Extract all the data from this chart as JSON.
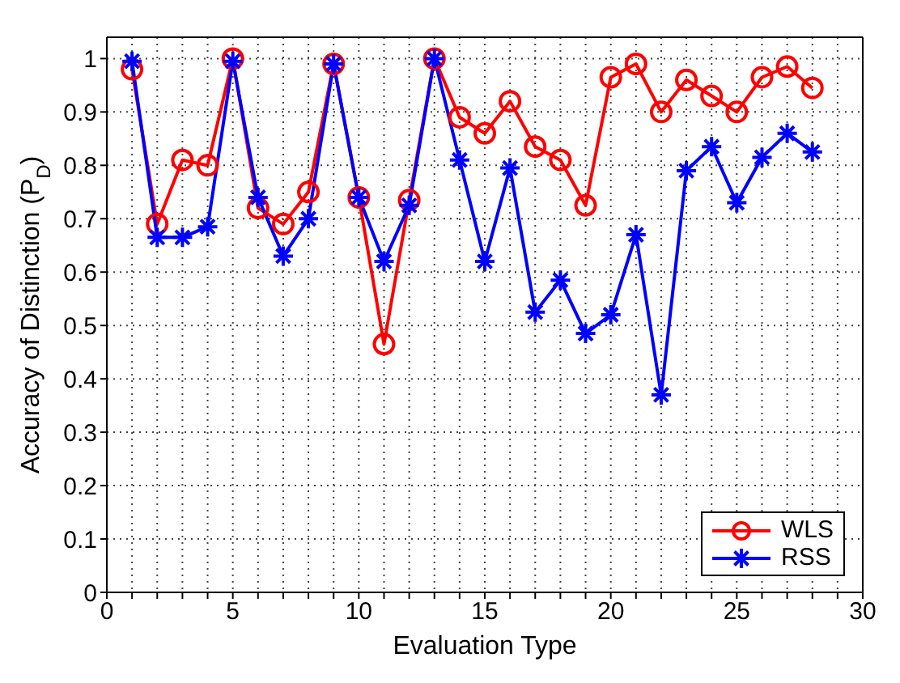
{
  "chart_data": {
    "type": "line",
    "xlabel": "Evaluation Type",
    "ylabel": "Accuracy of Distinction (P$_{D}$)",
    "x": [
      1,
      2,
      3,
      4,
      5,
      6,
      7,
      8,
      9,
      10,
      11,
      12,
      13,
      14,
      15,
      16,
      17,
      18,
      19,
      20,
      21,
      22,
      23,
      24,
      25,
      26,
      27,
      28
    ],
    "series": [
      {
        "name": "WLS",
        "color": "#ff0000",
        "marker": "circle",
        "values": [
          0.98,
          0.69,
          0.81,
          0.8,
          1.0,
          0.72,
          0.69,
          0.75,
          0.99,
          0.74,
          0.465,
          0.735,
          1.0,
          0.89,
          0.86,
          0.92,
          0.835,
          0.81,
          0.725,
          0.965,
          0.99,
          0.9,
          0.96,
          0.93,
          0.9,
          0.965,
          0.985,
          0.945
        ]
      },
      {
        "name": "RSS",
        "color": "#0000ff",
        "marker": "cross",
        "values": [
          0.995,
          0.665,
          0.665,
          0.685,
          0.995,
          0.74,
          0.63,
          0.7,
          0.99,
          0.74,
          0.62,
          0.725,
          1.0,
          0.81,
          0.62,
          0.795,
          0.525,
          0.585,
          0.485,
          0.52,
          0.67,
          0.37,
          0.79,
          0.835,
          0.73,
          0.815,
          0.86,
          0.825
        ]
      }
    ],
    "xlim": [
      0,
      30
    ],
    "xticks": [
      0,
      {
        "value": 1,
        "label": null
      },
      {
        "value": 2,
        "label": null
      },
      {
        "value": 3,
        "label": null
      },
      {
        "value": 4,
        "label": null
      },
      5,
      {
        "value": 6,
        "label": null
      },
      {
        "value": 7,
        "label": null
      },
      {
        "value": 8,
        "label": null
      },
      {
        "value": 9,
        "label": null
      },
      10,
      {
        "value": 11,
        "label": null
      },
      {
        "value": 12,
        "label": null
      },
      {
        "value": 13,
        "label": null
      },
      {
        "value": 14,
        "label": null
      },
      15,
      {
        "value": 16,
        "label": null
      },
      {
        "value": 17,
        "label": null
      },
      {
        "value": 18,
        "label": null
      },
      {
        "value": 19,
        "label": null
      },
      20,
      {
        "value": 21,
        "label": null
      },
      {
        "value": 22,
        "label": null
      },
      {
        "value": 23,
        "label": null
      },
      {
        "value": 24,
        "label": null
      },
      25,
      {
        "value": 26,
        "label": null
      },
      {
        "value": 27,
        "label": null
      },
      {
        "value": 28,
        "label": null
      },
      {
        "value": 29,
        "label": null
      },
      30
    ],
    "ylim": [
      0,
      1.04
    ],
    "yticks": [
      0,
      0.1,
      0.2,
      0.3,
      0.4,
      0.5,
      0.6,
      0.7,
      0.8,
      0.9,
      1
    ],
    "grid": true,
    "legend": "bottom right",
    "line_style": "solid"
  }
}
